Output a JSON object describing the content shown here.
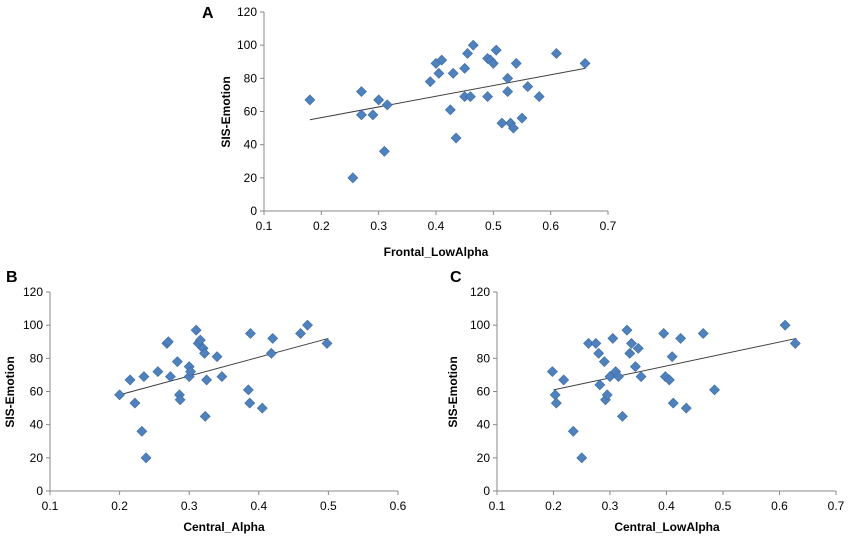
{
  "colors": {
    "marker": "#4f81bd",
    "marker_edge": "#3a6aa3",
    "trend": "#404040",
    "axis": "#888888"
  },
  "chart_data": [
    {
      "panel_label": "A",
      "type": "scatter",
      "xlabel": "Frontal_LowAlpha",
      "ylabel": "SIS-Emotion",
      "xlim": [
        0.1,
        0.7
      ],
      "ylim": [
        0,
        120
      ],
      "xticks": [
        "0.1",
        "0.2",
        "0.3",
        "0.4",
        "0.5",
        "0.6",
        "0.7"
      ],
      "yticks": [
        "0",
        "20",
        "40",
        "60",
        "80",
        "100",
        "120"
      ],
      "trendline": {
        "x": [
          0.18,
          0.66
        ],
        "y": [
          55,
          86
        ]
      },
      "x": [
        0.18,
        0.255,
        0.27,
        0.27,
        0.29,
        0.3,
        0.31,
        0.315,
        0.39,
        0.4,
        0.405,
        0.41,
        0.425,
        0.43,
        0.435,
        0.45,
        0.45,
        0.455,
        0.46,
        0.465,
        0.49,
        0.49,
        0.495,
        0.5,
        0.505,
        0.515,
        0.525,
        0.525,
        0.53,
        0.535,
        0.54,
        0.55,
        0.56,
        0.58,
        0.61,
        0.66
      ],
      "y": [
        67,
        20,
        58,
        72,
        58,
        67,
        36,
        64,
        78,
        89,
        83,
        91,
        61,
        83,
        44,
        69,
        86,
        95,
        69,
        100,
        69,
        92,
        91,
        89,
        97,
        53,
        80,
        72,
        53,
        50,
        89,
        56,
        75,
        69,
        95,
        89
      ]
    },
    {
      "panel_label": "B",
      "type": "scatter",
      "xlabel": "Central_Alpha",
      "ylabel": "SIS-Emotion",
      "xlim": [
        0.1,
        0.6
      ],
      "ylim": [
        0,
        120
      ],
      "xticks": [
        "0.1",
        "0.2",
        "0.3",
        "0.4",
        "0.5",
        "0.6"
      ],
      "yticks": [
        "0",
        "20",
        "40",
        "60",
        "80",
        "100",
        "120"
      ],
      "trendline": {
        "x": [
          0.2,
          0.5
        ],
        "y": [
          58,
          92
        ]
      },
      "x": [
        0.2,
        0.215,
        0.222,
        0.232,
        0.235,
        0.238,
        0.255,
        0.268,
        0.27,
        0.273,
        0.283,
        0.286,
        0.287,
        0.3,
        0.3,
        0.302,
        0.31,
        0.313,
        0.316,
        0.32,
        0.322,
        0.323,
        0.325,
        0.34,
        0.347,
        0.385,
        0.387,
        0.388,
        0.405,
        0.418,
        0.42,
        0.46,
        0.47,
        0.498
      ],
      "y": [
        58,
        67,
        53,
        36,
        69,
        20,
        72,
        89,
        90,
        69,
        78,
        58,
        55,
        69,
        75,
        72,
        97,
        89,
        91,
        86,
        83,
        45,
        67,
        81,
        69,
        61,
        53,
        95,
        50,
        83,
        92,
        95,
        100,
        89
      ]
    },
    {
      "panel_label": "C",
      "type": "scatter",
      "xlabel": "Central_LowAlpha",
      "ylabel": "SIS-Emotion",
      "xlim": [
        0.1,
        0.7
      ],
      "ylim": [
        0,
        120
      ],
      "xticks": [
        "0.1",
        "0.2",
        "0.3",
        "0.4",
        "0.5",
        "0.6",
        "0.7"
      ],
      "yticks": [
        "0",
        "20",
        "40",
        "60",
        "80",
        "100",
        "120"
      ],
      "trendline": {
        "x": [
          0.2,
          0.63
        ],
        "y": [
          61,
          92
        ]
      },
      "x": [
        0.198,
        0.203,
        0.205,
        0.218,
        0.235,
        0.25,
        0.262,
        0.275,
        0.28,
        0.282,
        0.29,
        0.292,
        0.295,
        0.3,
        0.305,
        0.31,
        0.315,
        0.322,
        0.33,
        0.335,
        0.338,
        0.345,
        0.35,
        0.355,
        0.395,
        0.398,
        0.405,
        0.41,
        0.412,
        0.425,
        0.435,
        0.465,
        0.485,
        0.61,
        0.628
      ],
      "y": [
        72,
        58,
        53,
        67,
        36,
        20,
        89,
        89,
        83,
        64,
        78,
        55,
        58,
        69,
        92,
        72,
        69,
        45,
        97,
        83,
        89,
        75,
        86,
        69,
        95,
        69,
        67,
        81,
        53,
        92,
        50,
        95,
        61,
        100,
        89
      ]
    }
  ]
}
